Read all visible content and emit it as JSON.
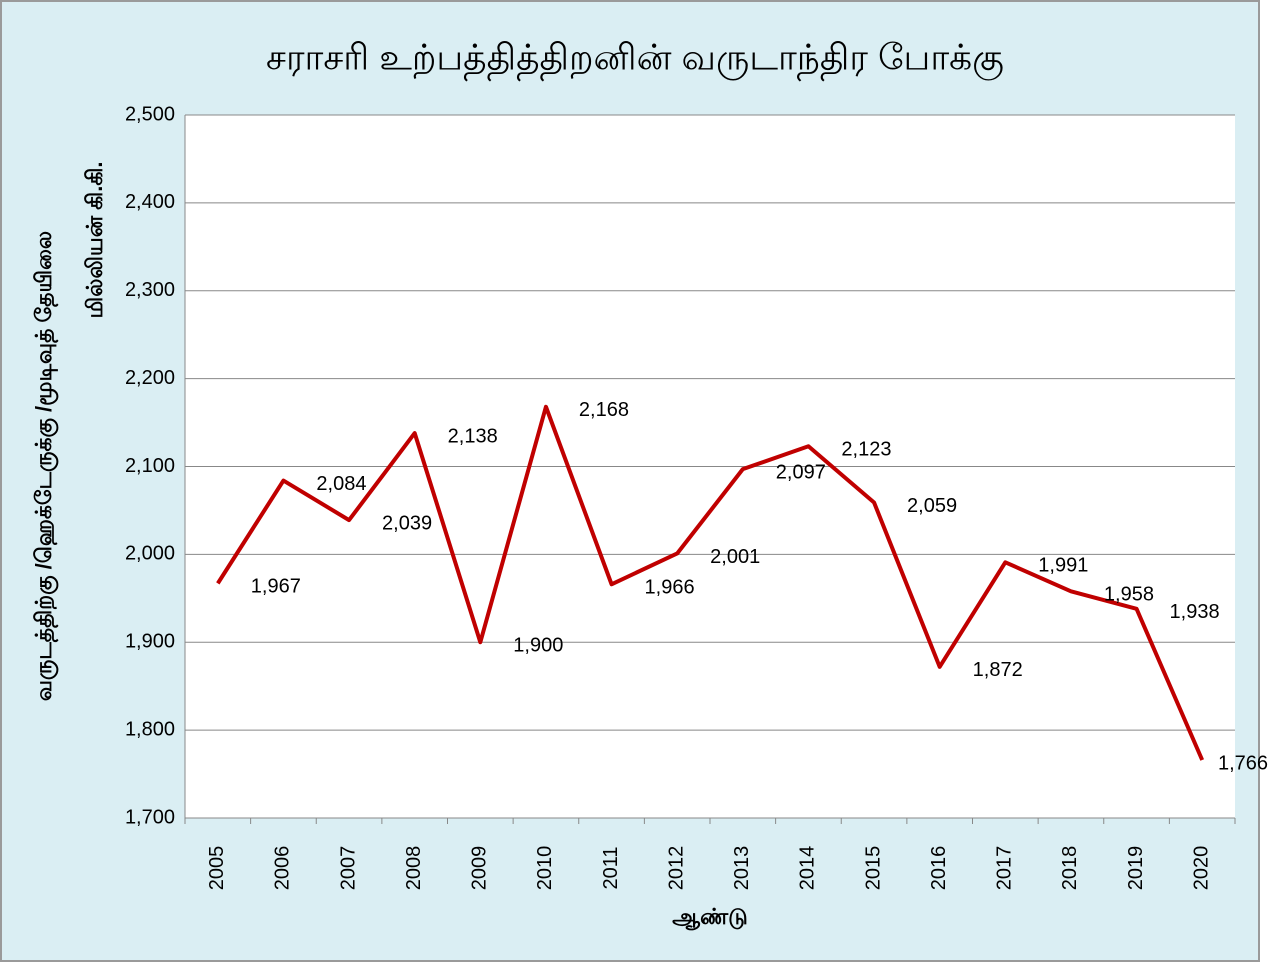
{
  "chart_data": {
    "type": "line",
    "title": "சராசரி உற்பத்தித்திறனின் வருடாந்திர போக்கு",
    "y_label": [
      "வருடத்திற்கு /ஹெக்டேருக்கு /மூடிவுத் தேயிலை",
      "மில்லியன் கி.கி."
    ],
    "x_label": "ஆண்டு",
    "categories": [
      "2005",
      "2006",
      "2007",
      "2008",
      "2009",
      "2010",
      "2011",
      "2012",
      "2013",
      "2014",
      "2015",
      "2016",
      "2017",
      "2018",
      "2019",
      "2020"
    ],
    "values": [
      1967,
      2084,
      2039,
      2138,
      1900,
      2168,
      1966,
      2001,
      2097,
      2123,
      2059,
      1872,
      1991,
      1958,
      1938,
      1766
    ],
    "value_labels": [
      "1,967",
      "2,084",
      "2,039",
      "2,138",
      "1,900",
      "2,168",
      "1,966",
      "2,001",
      "2,097",
      "2,123",
      "2,059",
      "1,872",
      "1,991",
      "1,958",
      "1,938",
      "1,766"
    ],
    "color": "#c00000",
    "ylim": [
      1700,
      2500
    ],
    "yticks": [
      {
        "value": 1700,
        "label": "1,700"
      },
      {
        "value": 1800,
        "label": "1,800"
      },
      {
        "value": 1900,
        "label": "1,900"
      },
      {
        "value": 2000,
        "label": "2,000"
      },
      {
        "value": 2100,
        "label": "2,100"
      },
      {
        "value": 2200,
        "label": "2,200"
      },
      {
        "value": 2300,
        "label": "2,300"
      },
      {
        "value": 2400,
        "label": "2,400"
      },
      {
        "value": 2500,
        "label": "2,500"
      }
    ],
    "grid": true
  }
}
